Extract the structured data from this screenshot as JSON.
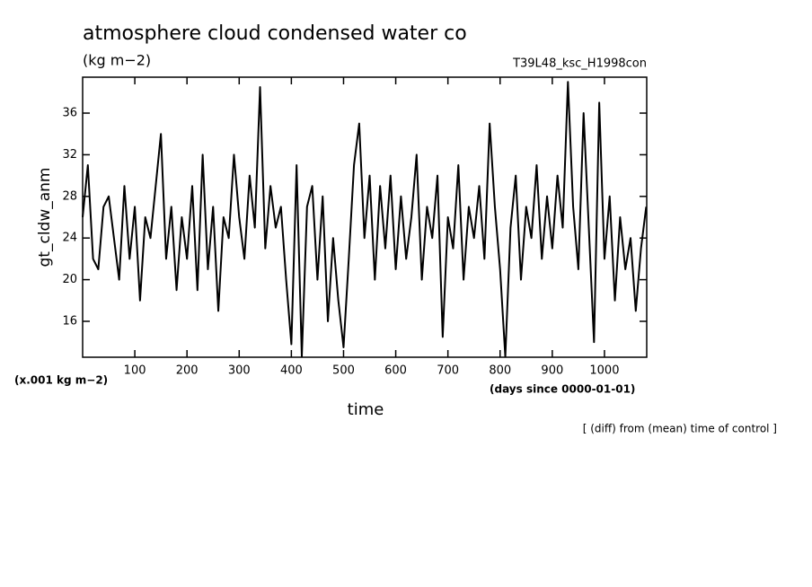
{
  "chart_data": {
    "type": "line",
    "title": "atmosphere cloud condensed water co",
    "units": "(kg m−2)",
    "run_name": "T39L48_ksc_H1998con",
    "ylabel": "gt_cldw_anm",
    "yscale_note": "(x.001 kg m−2)",
    "xunits": "(days since 0000-01-01)",
    "xlabel": "time",
    "footnote": "[ (diff) from (mean) time of control ]",
    "color": "#000000",
    "xlim": [
      0,
      1081
    ],
    "ylim": [
      12.55,
      39.45
    ],
    "xticks": [
      100,
      200,
      300,
      400,
      500,
      600,
      700,
      800,
      900,
      1000
    ],
    "yticks": [
      16,
      20,
      24,
      28,
      32,
      36
    ],
    "x": [
      0,
      10,
      20,
      30,
      40,
      50,
      60,
      70,
      80,
      90,
      100,
      110,
      120,
      130,
      140,
      150,
      160,
      170,
      180,
      190,
      200,
      210,
      220,
      230,
      240,
      250,
      260,
      270,
      280,
      290,
      300,
      310,
      320,
      330,
      340,
      350,
      360,
      370,
      380,
      390,
      400,
      410,
      420,
      430,
      440,
      450,
      460,
      470,
      480,
      490,
      500,
      510,
      520,
      530,
      540,
      550,
      560,
      570,
      580,
      590,
      600,
      610,
      620,
      630,
      640,
      650,
      660,
      670,
      680,
      690,
      700,
      710,
      720,
      730,
      740,
      750,
      760,
      770,
      780,
      790,
      800,
      810,
      820,
      830,
      840,
      850,
      860,
      870,
      880,
      890,
      900,
      910,
      920,
      930,
      940,
      950,
      960,
      970,
      980,
      990,
      1000,
      1010,
      1020,
      1030,
      1040,
      1050,
      1060,
      1070,
      1080
    ],
    "values": [
      26,
      31,
      22,
      21,
      27,
      28,
      24,
      20,
      29,
      22,
      27,
      18,
      26,
      24,
      29,
      34,
      22,
      27,
      19,
      26,
      22,
      29,
      19,
      32,
      21,
      27,
      17,
      26,
      24,
      32,
      26,
      22,
      30,
      25,
      38.5,
      23,
      29,
      25,
      27,
      20,
      13.8,
      31,
      12.6,
      27,
      29,
      20,
      28,
      16,
      24,
      18,
      13.5,
      22,
      31,
      35,
      24,
      30,
      20,
      29,
      23,
      30,
      21,
      28,
      22,
      26,
      32,
      20,
      27,
      24,
      30,
      14.5,
      26,
      23,
      31,
      20,
      27,
      24,
      29,
      22,
      35,
      27,
      21,
      12.6,
      25,
      30,
      20,
      27,
      24,
      31,
      22,
      28,
      23,
      30,
      25,
      39,
      27,
      21,
      36,
      25,
      14,
      37,
      22,
      28,
      18,
      26,
      21,
      24,
      17,
      23,
      27
    ]
  }
}
